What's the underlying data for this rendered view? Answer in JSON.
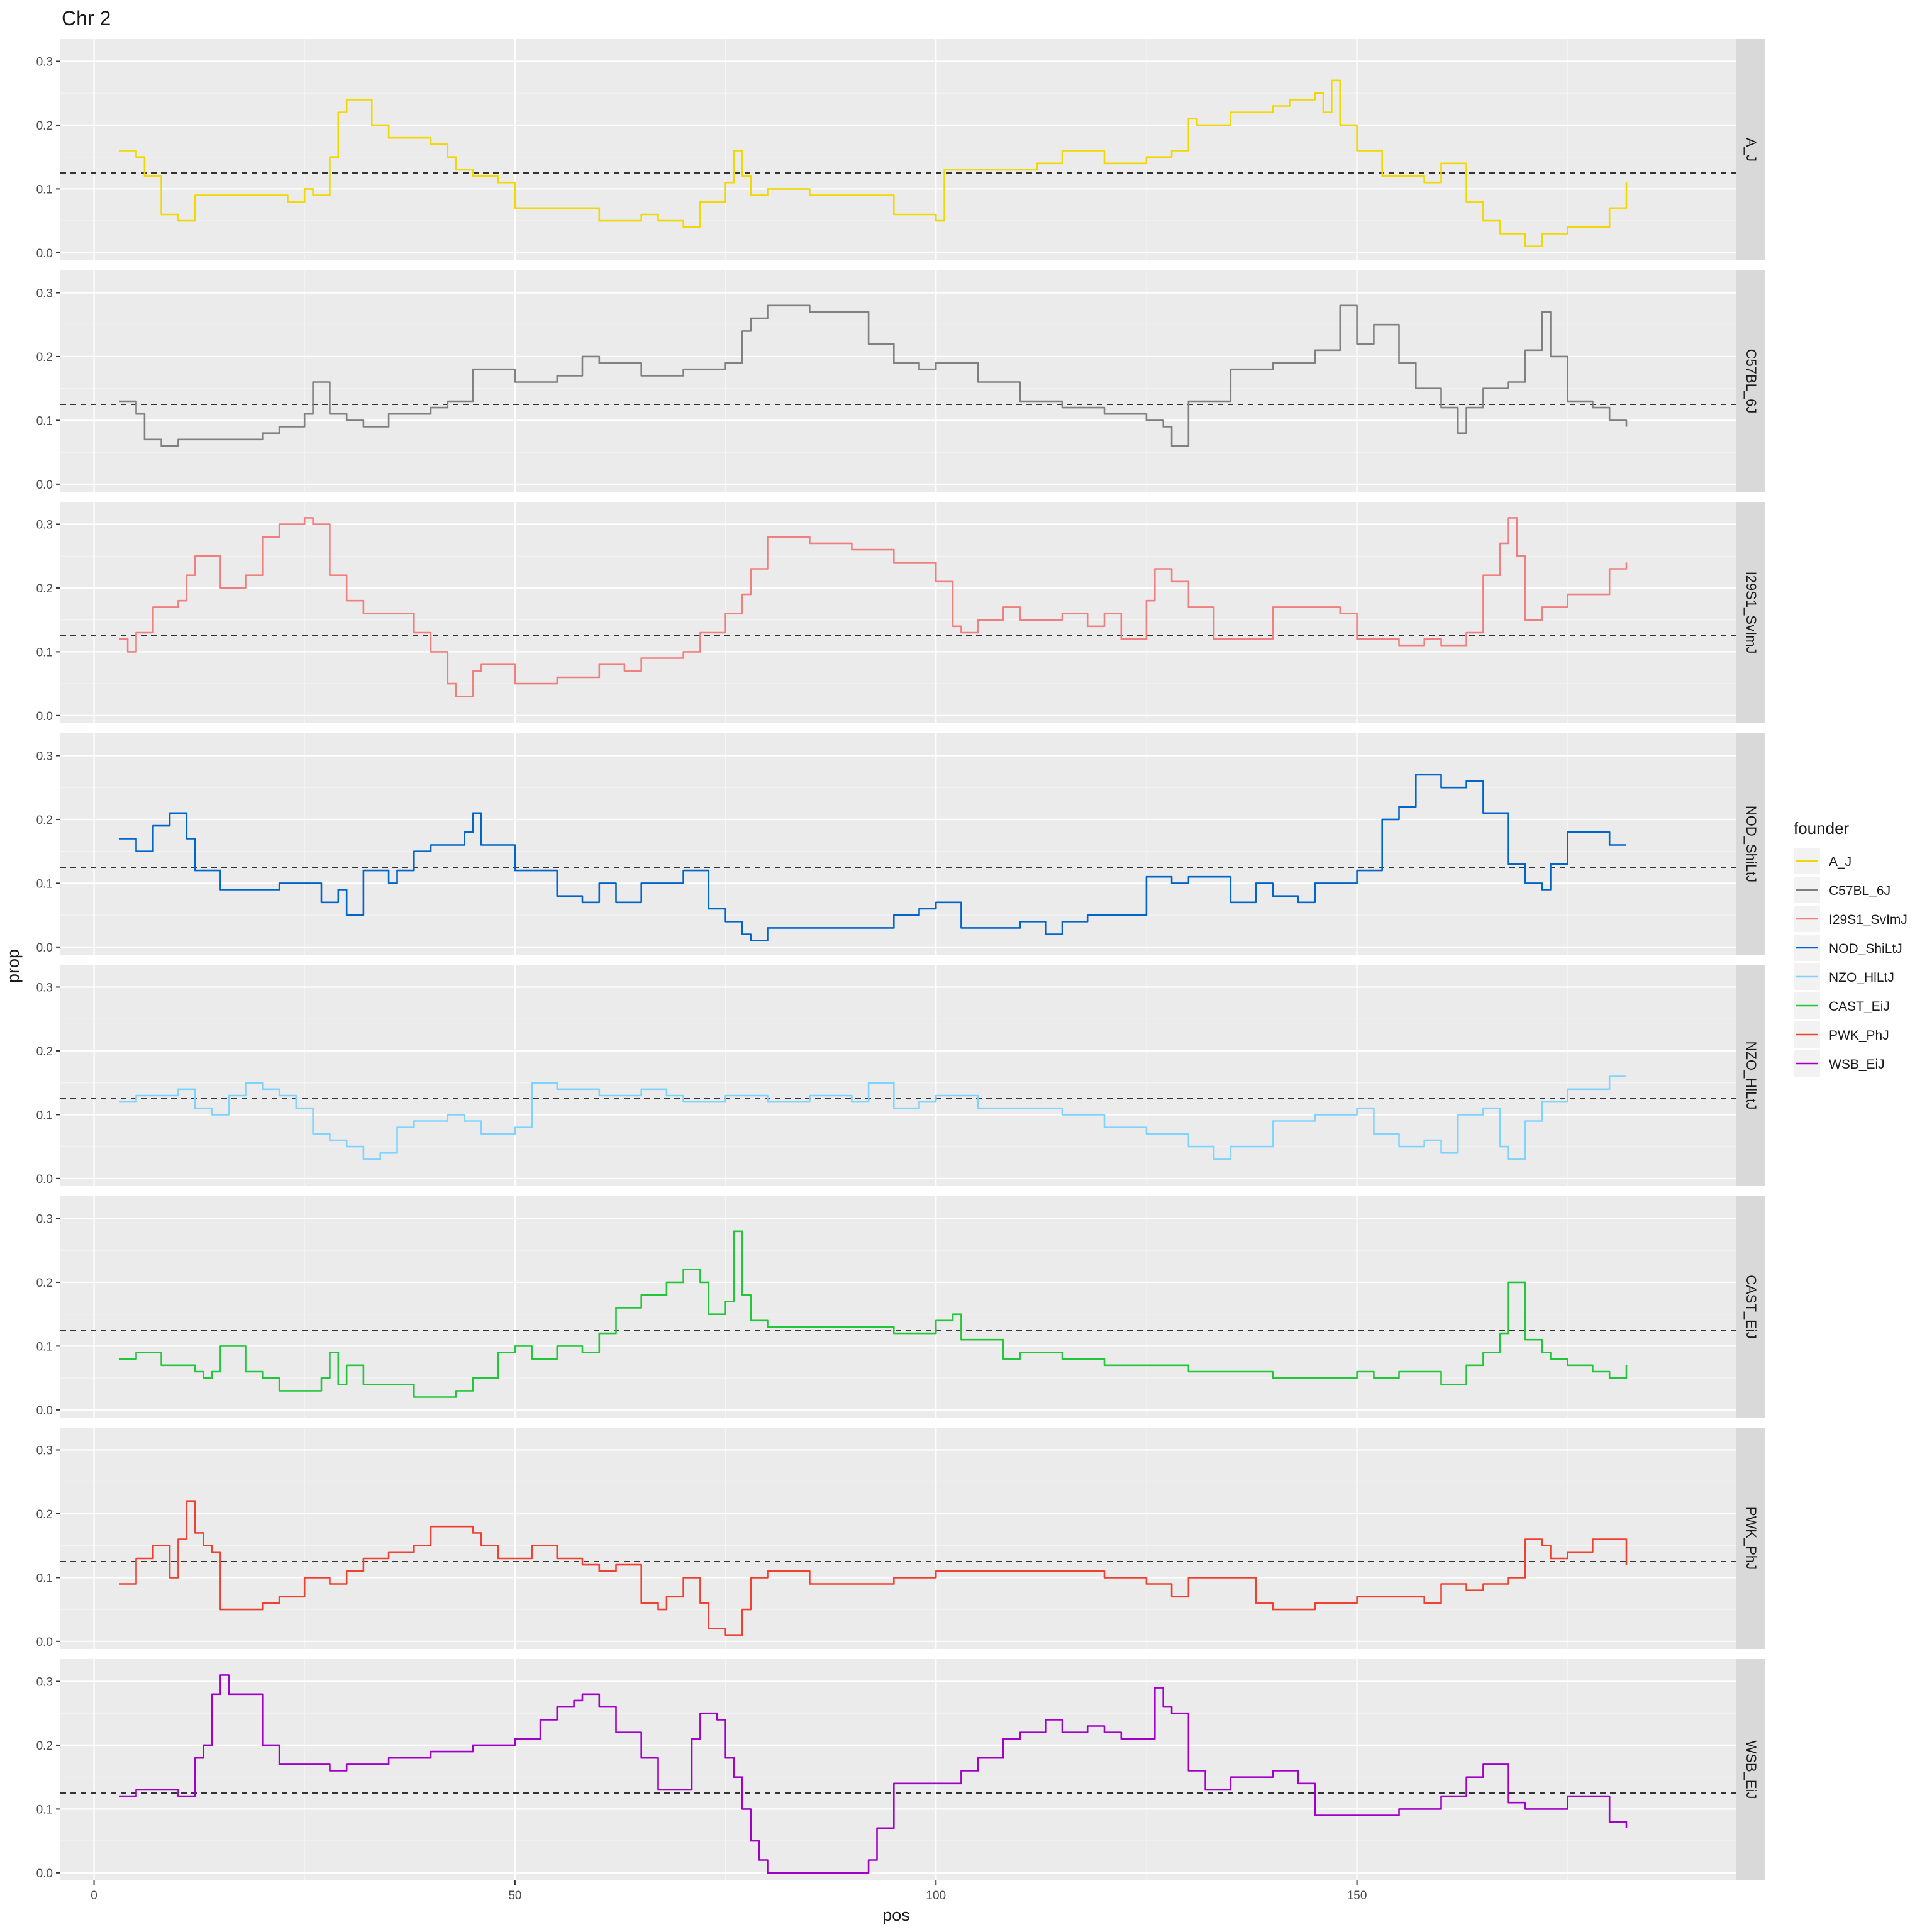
{
  "chart_data": {
    "type": "line",
    "title": "Chr 2",
    "xlabel": "pos",
    "ylabel": "prop",
    "xlim": [
      -4,
      195
    ],
    "ylim": [
      -0.012,
      0.335
    ],
    "x_ticks": [
      0,
      50,
      100,
      150
    ],
    "y_ticks": [
      0.0,
      0.1,
      0.2,
      0.3
    ],
    "y_tick_labels": [
      "0.0",
      "0.1",
      "0.2",
      "0.3"
    ],
    "reference_line": 0.125,
    "grid": true,
    "facet": "rows",
    "legend": {
      "title": "founder",
      "position": "right"
    },
    "series": [
      {
        "name": "A_J",
        "color": "#F0D800",
        "x": [
          3,
          5,
          6,
          8,
          10,
          12,
          15,
          20,
          23,
          25,
          26,
          28,
          29,
          30,
          31,
          33,
          35,
          40,
          42,
          43,
          45,
          48,
          50,
          55,
          60,
          65,
          67,
          70,
          72,
          75,
          76,
          77,
          78,
          80,
          85,
          90,
          95,
          100,
          101,
          103,
          105,
          110,
          112,
          115,
          120,
          125,
          128,
          130,
          131,
          133,
          135,
          140,
          142,
          145,
          146,
          147,
          148,
          150,
          153,
          155,
          158,
          160,
          163,
          165,
          167,
          170,
          172,
          175,
          180,
          182
        ],
        "y": [
          0.16,
          0.15,
          0.12,
          0.06,
          0.05,
          0.09,
          0.09,
          0.09,
          0.08,
          0.1,
          0.09,
          0.15,
          0.22,
          0.24,
          0.24,
          0.2,
          0.18,
          0.17,
          0.15,
          0.13,
          0.12,
          0.11,
          0.07,
          0.07,
          0.05,
          0.06,
          0.05,
          0.04,
          0.08,
          0.11,
          0.16,
          0.12,
          0.09,
          0.1,
          0.09,
          0.09,
          0.06,
          0.05,
          0.13,
          0.13,
          0.13,
          0.13,
          0.14,
          0.16,
          0.14,
          0.15,
          0.16,
          0.21,
          0.2,
          0.2,
          0.22,
          0.23,
          0.24,
          0.25,
          0.22,
          0.27,
          0.2,
          0.16,
          0.12,
          0.12,
          0.11,
          0.14,
          0.08,
          0.05,
          0.03,
          0.01,
          0.03,
          0.04,
          0.07,
          0.11
        ]
      },
      {
        "name": "C57BL_6J",
        "color": "#808080",
        "x": [
          3,
          5,
          6,
          8,
          10,
          15,
          20,
          22,
          25,
          26,
          28,
          30,
          32,
          35,
          40,
          42,
          45,
          50,
          55,
          58,
          60,
          65,
          68,
          70,
          72,
          75,
          77,
          78,
          80,
          85,
          90,
          92,
          95,
          98,
          100,
          105,
          110,
          115,
          120,
          125,
          127,
          128,
          130,
          135,
          140,
          145,
          148,
          150,
          152,
          155,
          157,
          160,
          162,
          163,
          165,
          168,
          170,
          172,
          173,
          175,
          178,
          180,
          182
        ],
        "y": [
          0.13,
          0.11,
          0.07,
          0.06,
          0.07,
          0.07,
          0.08,
          0.09,
          0.11,
          0.16,
          0.11,
          0.1,
          0.09,
          0.11,
          0.12,
          0.13,
          0.18,
          0.16,
          0.17,
          0.2,
          0.19,
          0.17,
          0.17,
          0.18,
          0.18,
          0.19,
          0.24,
          0.26,
          0.28,
          0.27,
          0.27,
          0.22,
          0.19,
          0.18,
          0.19,
          0.16,
          0.13,
          0.12,
          0.11,
          0.1,
          0.09,
          0.06,
          0.13,
          0.18,
          0.19,
          0.21,
          0.28,
          0.22,
          0.25,
          0.19,
          0.15,
          0.12,
          0.08,
          0.12,
          0.15,
          0.16,
          0.21,
          0.27,
          0.2,
          0.13,
          0.12,
          0.1,
          0.09
        ]
      },
      {
        "name": "I29S1_SvImJ",
        "color": "#F08080",
        "x": [
          3,
          4,
          5,
          7,
          10,
          11,
          12,
          15,
          18,
          20,
          22,
          25,
          26,
          28,
          30,
          32,
          35,
          38,
          40,
          42,
          43,
          45,
          46,
          50,
          55,
          60,
          63,
          65,
          70,
          72,
          75,
          77,
          78,
          80,
          85,
          90,
          95,
          100,
          102,
          103,
          105,
          108,
          110,
          115,
          118,
          120,
          122,
          125,
          126,
          128,
          130,
          133,
          135,
          140,
          145,
          148,
          150,
          155,
          158,
          160,
          163,
          165,
          167,
          168,
          169,
          170,
          172,
          175,
          180,
          182
        ],
        "y": [
          0.12,
          0.1,
          0.13,
          0.17,
          0.18,
          0.22,
          0.25,
          0.2,
          0.22,
          0.28,
          0.3,
          0.31,
          0.3,
          0.22,
          0.18,
          0.16,
          0.16,
          0.13,
          0.1,
          0.05,
          0.03,
          0.07,
          0.08,
          0.05,
          0.06,
          0.08,
          0.07,
          0.09,
          0.1,
          0.13,
          0.16,
          0.19,
          0.23,
          0.28,
          0.27,
          0.26,
          0.24,
          0.21,
          0.14,
          0.13,
          0.15,
          0.17,
          0.15,
          0.16,
          0.14,
          0.16,
          0.12,
          0.18,
          0.23,
          0.21,
          0.17,
          0.12,
          0.12,
          0.17,
          0.17,
          0.16,
          0.12,
          0.11,
          0.12,
          0.11,
          0.13,
          0.22,
          0.27,
          0.31,
          0.25,
          0.15,
          0.17,
          0.19,
          0.23,
          0.24
        ]
      },
      {
        "name": "NOD_ShiLtJ",
        "color": "#0064C9",
        "x": [
          3,
          5,
          7,
          9,
          10,
          11,
          12,
          15,
          18,
          20,
          22,
          25,
          27,
          29,
          30,
          32,
          35,
          36,
          38,
          40,
          44,
          45,
          46,
          50,
          55,
          58,
          60,
          62,
          65,
          68,
          70,
          73,
          75,
          77,
          78,
          80,
          85,
          90,
          95,
          98,
          100,
          103,
          105,
          110,
          113,
          115,
          118,
          120,
          125,
          128,
          130,
          135,
          138,
          140,
          143,
          145,
          148,
          150,
          153,
          155,
          157,
          160,
          163,
          165,
          168,
          170,
          172,
          173,
          175,
          180,
          182
        ],
        "y": [
          0.17,
          0.15,
          0.19,
          0.21,
          0.21,
          0.17,
          0.12,
          0.09,
          0.09,
          0.09,
          0.1,
          0.1,
          0.07,
          0.09,
          0.05,
          0.12,
          0.1,
          0.12,
          0.15,
          0.16,
          0.18,
          0.21,
          0.16,
          0.12,
          0.08,
          0.07,
          0.1,
          0.07,
          0.1,
          0.1,
          0.12,
          0.06,
          0.04,
          0.02,
          0.01,
          0.03,
          0.03,
          0.03,
          0.05,
          0.06,
          0.07,
          0.03,
          0.03,
          0.04,
          0.02,
          0.04,
          0.05,
          0.05,
          0.11,
          0.1,
          0.11,
          0.07,
          0.1,
          0.08,
          0.07,
          0.1,
          0.1,
          0.12,
          0.2,
          0.22,
          0.27,
          0.25,
          0.26,
          0.21,
          0.13,
          0.1,
          0.09,
          0.13,
          0.18,
          0.16,
          0.16
        ]
      },
      {
        "name": "NZO_HlLtJ",
        "color": "#7FD4FF",
        "x": [
          3,
          5,
          8,
          10,
          12,
          14,
          16,
          18,
          20,
          22,
          24,
          26,
          28,
          30,
          32,
          34,
          36,
          38,
          40,
          42,
          44,
          46,
          48,
          50,
          52,
          55,
          60,
          65,
          68,
          70,
          75,
          80,
          85,
          90,
          92,
          95,
          98,
          100,
          105,
          110,
          115,
          120,
          125,
          130,
          133,
          135,
          140,
          145,
          150,
          152,
          155,
          158,
          160,
          162,
          165,
          167,
          168,
          170,
          172,
          175,
          180,
          182
        ],
        "y": [
          0.12,
          0.13,
          0.13,
          0.14,
          0.11,
          0.1,
          0.13,
          0.15,
          0.14,
          0.13,
          0.11,
          0.07,
          0.06,
          0.05,
          0.03,
          0.04,
          0.08,
          0.09,
          0.09,
          0.1,
          0.09,
          0.07,
          0.07,
          0.08,
          0.15,
          0.14,
          0.13,
          0.14,
          0.13,
          0.12,
          0.13,
          0.12,
          0.13,
          0.12,
          0.15,
          0.11,
          0.12,
          0.13,
          0.11,
          0.11,
          0.1,
          0.08,
          0.07,
          0.05,
          0.03,
          0.05,
          0.09,
          0.1,
          0.11,
          0.07,
          0.05,
          0.06,
          0.04,
          0.1,
          0.11,
          0.05,
          0.03,
          0.09,
          0.12,
          0.14,
          0.16,
          0.16
        ]
      },
      {
        "name": "CAST_EiJ",
        "color": "#22C63A",
        "x": [
          3,
          5,
          8,
          10,
          12,
          13,
          14,
          15,
          18,
          20,
          22,
          25,
          27,
          28,
          29,
          30,
          32,
          35,
          38,
          40,
          43,
          45,
          48,
          50,
          52,
          55,
          58,
          60,
          62,
          65,
          68,
          70,
          72,
          73,
          75,
          76,
          77,
          78,
          80,
          85,
          90,
          95,
          100,
          102,
          103,
          105,
          108,
          110,
          115,
          120,
          125,
          130,
          135,
          140,
          145,
          150,
          152,
          155,
          158,
          160,
          163,
          165,
          167,
          168,
          170,
          172,
          173,
          175,
          178,
          180,
          182
        ],
        "y": [
          0.08,
          0.09,
          0.07,
          0.07,
          0.06,
          0.05,
          0.06,
          0.1,
          0.06,
          0.05,
          0.03,
          0.03,
          0.05,
          0.09,
          0.04,
          0.07,
          0.04,
          0.04,
          0.02,
          0.02,
          0.03,
          0.05,
          0.09,
          0.1,
          0.08,
          0.1,
          0.09,
          0.12,
          0.16,
          0.18,
          0.2,
          0.22,
          0.2,
          0.15,
          0.17,
          0.28,
          0.18,
          0.14,
          0.13,
          0.13,
          0.13,
          0.12,
          0.14,
          0.15,
          0.11,
          0.11,
          0.08,
          0.09,
          0.08,
          0.07,
          0.07,
          0.06,
          0.06,
          0.05,
          0.05,
          0.06,
          0.05,
          0.06,
          0.06,
          0.04,
          0.07,
          0.09,
          0.12,
          0.2,
          0.11,
          0.09,
          0.08,
          0.07,
          0.06,
          0.05,
          0.07
        ]
      },
      {
        "name": "PWK_PhJ",
        "color": "#F04030",
        "x": [
          3,
          5,
          7,
          8,
          9,
          10,
          11,
          12,
          13,
          14,
          15,
          16,
          18,
          20,
          22,
          25,
          28,
          30,
          32,
          35,
          38,
          40,
          42,
          45,
          46,
          48,
          50,
          52,
          55,
          58,
          60,
          62,
          65,
          67,
          68,
          70,
          72,
          73,
          75,
          76,
          77,
          78,
          80,
          85,
          90,
          95,
          98,
          100,
          105,
          110,
          115,
          120,
          125,
          128,
          130,
          135,
          138,
          140,
          145,
          150,
          155,
          158,
          160,
          163,
          165,
          168,
          170,
          172,
          173,
          175,
          178,
          180,
          182
        ],
        "y": [
          0.09,
          0.13,
          0.15,
          0.15,
          0.1,
          0.16,
          0.22,
          0.17,
          0.15,
          0.14,
          0.05,
          0.05,
          0.05,
          0.06,
          0.07,
          0.1,
          0.09,
          0.11,
          0.13,
          0.14,
          0.15,
          0.18,
          0.18,
          0.17,
          0.15,
          0.13,
          0.13,
          0.15,
          0.13,
          0.12,
          0.11,
          0.12,
          0.06,
          0.05,
          0.07,
          0.1,
          0.06,
          0.02,
          0.01,
          0.01,
          0.05,
          0.1,
          0.11,
          0.09,
          0.09,
          0.1,
          0.1,
          0.11,
          0.11,
          0.11,
          0.11,
          0.1,
          0.09,
          0.07,
          0.1,
          0.1,
          0.06,
          0.05,
          0.06,
          0.07,
          0.07,
          0.06,
          0.09,
          0.08,
          0.09,
          0.1,
          0.16,
          0.15,
          0.13,
          0.14,
          0.16,
          0.16,
          0.12
        ]
      },
      {
        "name": "WSB_EiJ",
        "color": "#A000C8",
        "x": [
          3,
          5,
          8,
          10,
          12,
          13,
          14,
          15,
          16,
          18,
          20,
          22,
          25,
          28,
          30,
          33,
          35,
          38,
          40,
          45,
          50,
          53,
          55,
          57,
          58,
          60,
          62,
          65,
          67,
          68,
          70,
          71,
          72,
          73,
          74,
          75,
          76,
          77,
          78,
          79,
          80,
          85,
          90,
          91,
          92,
          93,
          95,
          100,
          103,
          105,
          108,
          110,
          113,
          115,
          118,
          120,
          122,
          125,
          126,
          127,
          128,
          130,
          132,
          135,
          138,
          140,
          143,
          145,
          148,
          150,
          153,
          155,
          158,
          160,
          163,
          165,
          168,
          170,
          172,
          175,
          180,
          182
        ],
        "y": [
          0.12,
          0.13,
          0.13,
          0.12,
          0.18,
          0.2,
          0.28,
          0.31,
          0.28,
          0.28,
          0.2,
          0.17,
          0.17,
          0.16,
          0.17,
          0.17,
          0.18,
          0.18,
          0.19,
          0.2,
          0.21,
          0.24,
          0.26,
          0.27,
          0.28,
          0.26,
          0.22,
          0.18,
          0.13,
          0.13,
          0.13,
          0.21,
          0.25,
          0.25,
          0.24,
          0.18,
          0.15,
          0.1,
          0.05,
          0.02,
          0.0,
          0.0,
          0.0,
          0.0,
          0.02,
          0.07,
          0.14,
          0.14,
          0.16,
          0.18,
          0.21,
          0.22,
          0.24,
          0.22,
          0.23,
          0.22,
          0.21,
          0.21,
          0.29,
          0.26,
          0.25,
          0.16,
          0.13,
          0.15,
          0.15,
          0.16,
          0.14,
          0.09,
          0.09,
          0.09,
          0.09,
          0.1,
          0.1,
          0.12,
          0.15,
          0.17,
          0.11,
          0.1,
          0.1,
          0.12,
          0.08,
          0.07
        ]
      }
    ]
  }
}
